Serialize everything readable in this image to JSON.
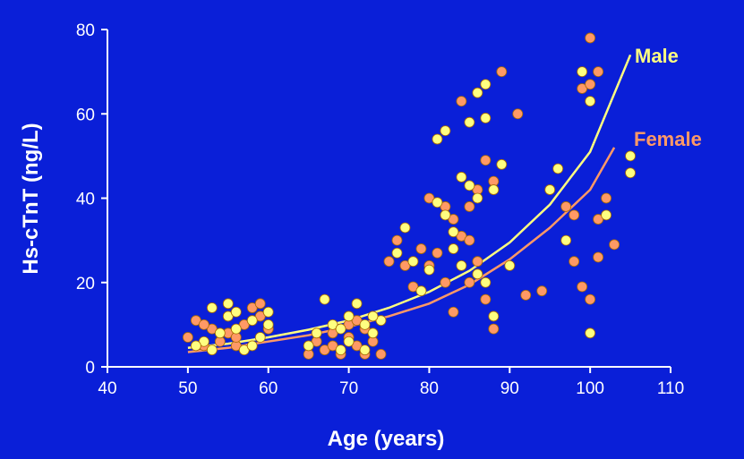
{
  "chart_data": {
    "type": "scatter",
    "title": "",
    "xlabel": "Age (years)",
    "ylabel": "Hs-cTnT (ng/L)",
    "xlim": [
      40,
      110
    ],
    "ylim": [
      0,
      80
    ],
    "xticks": [
      40,
      50,
      60,
      70,
      80,
      90,
      100,
      110
    ],
    "yticks": [
      0,
      20,
      40,
      60,
      80
    ],
    "grid": false,
    "legend": "inline labels at end of curves (top-right)",
    "series": [
      {
        "name": "Male",
        "color": "#ffff80",
        "fit_curve": [
          [
            50,
            4.5
          ],
          [
            55,
            5.5
          ],
          [
            60,
            7.0
          ],
          [
            65,
            8.8
          ],
          [
            70,
            11.0
          ],
          [
            75,
            14.0
          ],
          [
            80,
            17.8
          ],
          [
            85,
            22.8
          ],
          [
            90,
            29.5
          ],
          [
            95,
            38.5
          ],
          [
            100,
            51.0
          ],
          [
            105,
            74.0
          ]
        ],
        "points": [
          [
            52,
            6
          ],
          [
            53,
            4
          ],
          [
            54,
            8
          ],
          [
            55,
            12
          ],
          [
            56,
            9
          ],
          [
            57,
            4
          ],
          [
            58,
            11
          ],
          [
            59,
            7
          ],
          [
            60,
            10
          ],
          [
            53,
            14
          ],
          [
            55,
            15
          ],
          [
            51,
            5
          ],
          [
            56,
            13
          ],
          [
            58,
            5
          ],
          [
            60,
            13
          ],
          [
            65,
            5
          ],
          [
            66,
            8
          ],
          [
            67,
            16
          ],
          [
            68,
            10
          ],
          [
            69,
            9
          ],
          [
            70,
            12
          ],
          [
            71,
            15
          ],
          [
            72,
            10
          ],
          [
            73,
            8
          ],
          [
            74,
            11
          ],
          [
            69,
            4
          ],
          [
            70,
            6
          ],
          [
            72,
            4
          ],
          [
            73,
            12
          ],
          [
            76,
            27
          ],
          [
            77,
            33
          ],
          [
            78,
            25
          ],
          [
            79,
            18
          ],
          [
            80,
            23
          ],
          [
            81,
            39
          ],
          [
            82,
            36
          ],
          [
            83,
            28
          ],
          [
            84,
            45
          ],
          [
            85,
            43
          ],
          [
            86,
            40
          ],
          [
            87,
            67
          ],
          [
            88,
            42
          ],
          [
            87,
            59
          ],
          [
            86,
            22
          ],
          [
            87,
            20
          ],
          [
            88,
            12
          ],
          [
            85,
            58
          ],
          [
            86,
            65
          ],
          [
            82,
            56
          ],
          [
            81,
            54
          ],
          [
            89,
            48
          ],
          [
            90,
            24
          ],
          [
            96,
            47
          ],
          [
            97,
            30
          ],
          [
            99,
            70
          ],
          [
            100,
            63
          ],
          [
            100,
            8
          ],
          [
            102,
            36
          ],
          [
            105,
            50
          ],
          [
            105,
            46
          ],
          [
            95,
            42
          ],
          [
            83,
            32
          ],
          [
            84,
            24
          ]
        ]
      },
      {
        "name": "Female",
        "color": "#ff9966",
        "fit_curve": [
          [
            50,
            3.5
          ],
          [
            55,
            4.5
          ],
          [
            60,
            6.0
          ],
          [
            65,
            7.5
          ],
          [
            70,
            9.5
          ],
          [
            75,
            12.0
          ],
          [
            80,
            15.0
          ],
          [
            85,
            19.5
          ],
          [
            90,
            25.5
          ],
          [
            95,
            33.0
          ],
          [
            100,
            42.0
          ],
          [
            103,
            52.0
          ]
        ],
        "points": [
          [
            50,
            7
          ],
          [
            51,
            11
          ],
          [
            52,
            5
          ],
          [
            53,
            9
          ],
          [
            54,
            6
          ],
          [
            55,
            8
          ],
          [
            56,
            5
          ],
          [
            57,
            10
          ],
          [
            58,
            14
          ],
          [
            59,
            15
          ],
          [
            60,
            9
          ],
          [
            52,
            10
          ],
          [
            56,
            7
          ],
          [
            59,
            12
          ],
          [
            65,
            3
          ],
          [
            66,
            6
          ],
          [
            67,
            4
          ],
          [
            68,
            5
          ],
          [
            69,
            3
          ],
          [
            70,
            7
          ],
          [
            71,
            5
          ],
          [
            72,
            3
          ],
          [
            73,
            6
          ],
          [
            74,
            3
          ],
          [
            68,
            8
          ],
          [
            70,
            10
          ],
          [
            72,
            9
          ],
          [
            71,
            11
          ],
          [
            75,
            25
          ],
          [
            76,
            30
          ],
          [
            77,
            24
          ],
          [
            78,
            19
          ],
          [
            79,
            28
          ],
          [
            80,
            24
          ],
          [
            81,
            27
          ],
          [
            82,
            38
          ],
          [
            83,
            35
          ],
          [
            84,
            31
          ],
          [
            85,
            38
          ],
          [
            86,
            42
          ],
          [
            87,
            49
          ],
          [
            88,
            44
          ],
          [
            89,
            70
          ],
          [
            84,
            63
          ],
          [
            85,
            30
          ],
          [
            86,
            25
          ],
          [
            87,
            16
          ],
          [
            88,
            9
          ],
          [
            91,
            60
          ],
          [
            92,
            17
          ],
          [
            94,
            18
          ],
          [
            97,
            38
          ],
          [
            98,
            25
          ],
          [
            99,
            66
          ],
          [
            100,
            78
          ],
          [
            100,
            67
          ],
          [
            101,
            70
          ],
          [
            99,
            19
          ],
          [
            100,
            16
          ],
          [
            101,
            26
          ],
          [
            102,
            40
          ],
          [
            103,
            29
          ],
          [
            83,
            13
          ],
          [
            82,
            20
          ],
          [
            85,
            20
          ],
          [
            80,
            40
          ],
          [
            98,
            36
          ],
          [
            101,
            35
          ]
        ]
      }
    ]
  }
}
